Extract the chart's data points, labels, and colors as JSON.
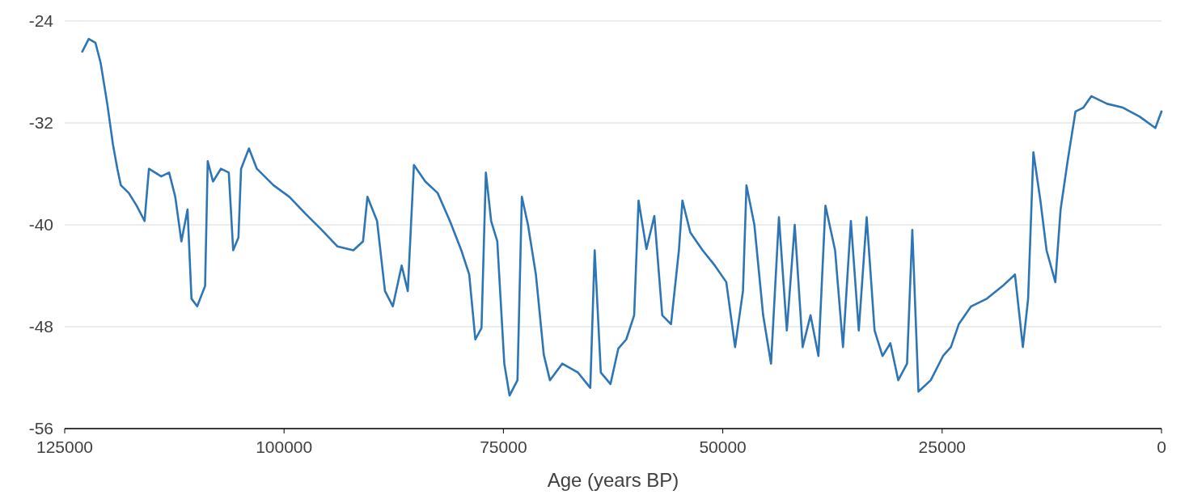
{
  "chart_data": {
    "type": "line",
    "xlabel": "Age (years BP)",
    "xlim": [
      125000,
      0
    ],
    "xticks": [
      125000,
      100000,
      75000,
      50000,
      25000,
      0
    ],
    "ylim": [
      -56,
      -24
    ],
    "yticks": [
      -24,
      -32,
      -40,
      -48,
      -56
    ],
    "grid": "y",
    "line_style": "solid",
    "marker": "none",
    "series": [
      {
        "color": "#2e75b6",
        "x": [
          123000,
          122260,
          121500,
          120900,
          120150,
          119500,
          119000,
          118600,
          117700,
          116800,
          115900,
          115400,
          114000,
          113100,
          112400,
          111700,
          111000,
          110550,
          109900,
          109000,
          108700,
          108100,
          107200,
          106300,
          105800,
          105200,
          104900,
          104000,
          103100,
          101200,
          99400,
          97600,
          95700,
          93900,
          92100,
          91000,
          90500,
          89400,
          88500,
          87600,
          86600,
          85900,
          85200,
          83900,
          82500,
          81100,
          79800,
          78900,
          78200,
          77500,
          77000,
          76400,
          75700,
          74900,
          74300,
          73400,
          72900,
          72200,
          71300,
          70400,
          69700,
          68300,
          66500,
          65100,
          64600,
          63900,
          62800,
          61900,
          61000,
          60100,
          59600,
          58700,
          57800,
          56900,
          55900,
          55000,
          54600,
          53700,
          52300,
          50900,
          49600,
          48600,
          47700,
          47300,
          46400,
          45400,
          44500,
          43600,
          42700,
          41800,
          40900,
          40000,
          39100,
          38300,
          37200,
          36300,
          35400,
          34500,
          33600,
          32700,
          31800,
          30900,
          30000,
          29000,
          28400,
          27700,
          26300,
          24900,
          24000,
          23100,
          21700,
          19900,
          18100,
          16700,
          15800,
          15200,
          14600,
          13800,
          13100,
          12100,
          11500,
          10700,
          9800,
          8900,
          8000,
          6200,
          4400,
          2500,
          700,
          0
        ],
        "values": [
          -26.4,
          -25.4,
          -25.7,
          -27.3,
          -30.5,
          -33.7,
          -35.6,
          -36.9,
          -37.5,
          -38.5,
          -39.7,
          -35.6,
          -36.2,
          -35.9,
          -37.8,
          -41.3,
          -38.8,
          -45.8,
          -46.4,
          -44.8,
          -35.0,
          -36.6,
          -35.6,
          -35.9,
          -42.0,
          -41.0,
          -35.6,
          -34.0,
          -35.6,
          -36.9,
          -37.8,
          -39.1,
          -40.4,
          -41.7,
          -42.0,
          -41.3,
          -37.8,
          -39.7,
          -45.2,
          -46.4,
          -43.2,
          -45.2,
          -35.3,
          -36.6,
          -37.5,
          -39.7,
          -42.0,
          -43.9,
          -49.0,
          -48.1,
          -35.9,
          -39.7,
          -41.3,
          -50.9,
          -53.4,
          -52.2,
          -37.8,
          -40.0,
          -43.9,
          -50.2,
          -52.2,
          -50.9,
          -51.6,
          -52.8,
          -42.0,
          -51.6,
          -52.5,
          -49.7,
          -49.0,
          -47.1,
          -38.1,
          -41.9,
          -39.3,
          -47.1,
          -47.8,
          -42.0,
          -38.1,
          -40.6,
          -42.0,
          -43.2,
          -44.5,
          -49.6,
          -45.2,
          -36.9,
          -40.0,
          -47.1,
          -50.9,
          -39.4,
          -48.3,
          -40.0,
          -49.6,
          -47.1,
          -50.3,
          -38.5,
          -42.0,
          -49.6,
          -39.7,
          -48.3,
          -39.4,
          -48.3,
          -50.3,
          -49.3,
          -52.2,
          -50.9,
          -40.4,
          -53.1,
          -52.2,
          -50.3,
          -49.6,
          -47.8,
          -46.4,
          -45.8,
          -44.8,
          -43.9,
          -49.6,
          -45.8,
          -34.3,
          -38.1,
          -42.0,
          -44.5,
          -38.8,
          -35.0,
          -31.1,
          -30.8,
          -29.9,
          -30.5,
          -30.8,
          -31.5,
          -32.4,
          -31.1
        ]
      }
    ]
  }
}
